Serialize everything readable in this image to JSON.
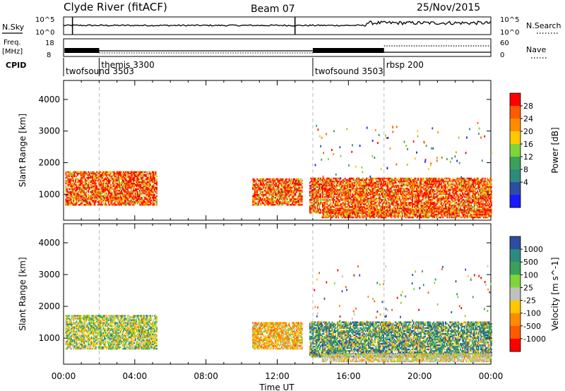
{
  "header": {
    "station": "Clyde River (fitACF)",
    "beam": "Beam 07",
    "date": "25/Nov/2015"
  },
  "top_panels": {
    "nsky_label": "N.Sky",
    "nsky_ticks": [
      "10^5",
      "10^0"
    ],
    "nsearch_label": "N.Search",
    "nsearch_ticks": [
      "10^5",
      "10^0"
    ],
    "freq_label_1": "Freq.",
    "freq_label_2": "[MHz]",
    "freq_ticks": [
      "18",
      "8"
    ],
    "nave_label": "Nave",
    "nave_ticks": [
      "60",
      "0"
    ],
    "cpid_label": "CPID"
  },
  "cpid_segments": [
    {
      "name": "twofsound 3503",
      "start_hour": 0.0
    },
    {
      "name": "themis 3300",
      "start_hour": 2.0
    },
    {
      "name": "twofsound 3503",
      "start_hour": 14.0
    },
    {
      "name": "rbsp 200",
      "start_hour": 18.0
    }
  ],
  "chart_data": [
    {
      "type": "heatmap",
      "panel": "power",
      "ylabel": "Slant Range [km]",
      "xlabel": "Time UT",
      "xlim_hours": [
        0,
        24
      ],
      "x_tick_labels": [
        "00:00",
        "04:00",
        "08:00",
        "12:00",
        "16:00",
        "20:00",
        "00:00"
      ],
      "ylim": [
        180,
        4600
      ],
      "y_ticks": [
        1000,
        2000,
        3000,
        4000
      ],
      "colorbar_label": "Power [dB]",
      "colorbar_ticks": [
        "28",
        "24",
        "20",
        "16",
        "12",
        "8",
        "4"
      ],
      "colorbar_colors": [
        "#ff0000",
        "#ff5a00",
        "#ff8c00",
        "#ffc800",
        "#7fd43a",
        "#3aa05c",
        "#2d8a7f",
        "#2d4ea0",
        "#1a1aff"
      ],
      "echo_regions": [
        {
          "t0": 0.1,
          "t1": 5.2,
          "r0": 650,
          "r1": 1700,
          "level": "high"
        },
        {
          "t0": 10.6,
          "t1": 13.4,
          "r0": 650,
          "r1": 1500,
          "level": "high"
        },
        {
          "t0": 13.8,
          "t1": 24.0,
          "r0": 400,
          "r1": 1500,
          "level": "high"
        },
        {
          "t0": 14.5,
          "t1": 24.0,
          "r0": 250,
          "r1": 500,
          "level": "high"
        }
      ]
    },
    {
      "type": "heatmap",
      "panel": "velocity",
      "ylabel": "Slant Range [km]",
      "xlabel": "Time UT",
      "xlim_hours": [
        0,
        24
      ],
      "x_tick_labels": [
        "00:00",
        "04:00",
        "08:00",
        "12:00",
        "16:00",
        "20:00",
        "00:00"
      ],
      "ylim": [
        180,
        4600
      ],
      "y_ticks": [
        1000,
        2000,
        3000,
        4000
      ],
      "colorbar_label": "Velocity [m s^-1]",
      "colorbar_ticks": [
        "1000",
        "500",
        "100",
        "25",
        "-25",
        "-100",
        "-500",
        "-1000"
      ],
      "colorbar_colors": [
        "#2d4ea0",
        "#2d8a7f",
        "#3aa05c",
        "#7fd43a",
        "#c0c0c0",
        "#ffc800",
        "#ff8c00",
        "#ff5a00",
        "#ff0000"
      ],
      "echo_regions": [
        {
          "t0": 0.1,
          "t1": 5.2,
          "r0": 650,
          "r1": 1700,
          "level": "mixed-green"
        },
        {
          "t0": 10.6,
          "t1": 13.4,
          "r0": 650,
          "r1": 1500,
          "level": "orange"
        },
        {
          "t0": 13.8,
          "t1": 24.0,
          "r0": 400,
          "r1": 1500,
          "level": "blue-green"
        },
        {
          "t0": 14.5,
          "t1": 24.0,
          "r0": 250,
          "r1": 500,
          "level": "grey"
        }
      ]
    }
  ]
}
